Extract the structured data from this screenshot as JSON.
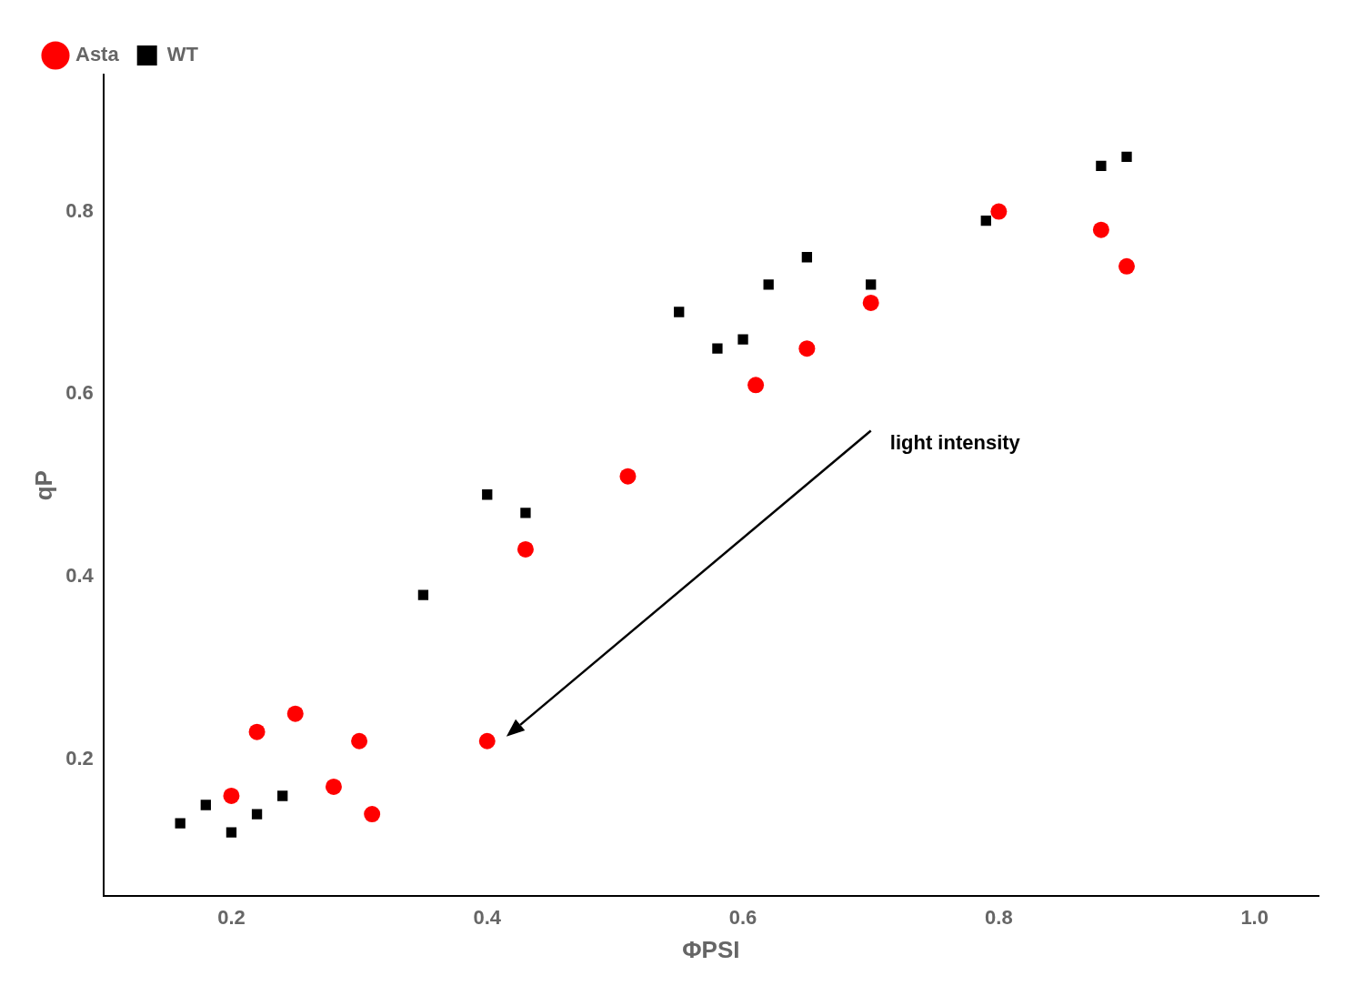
{
  "chart_data": {
    "type": "scatter",
    "xlabel": "ΦPSI",
    "ylabel": "qP",
    "xlim": [
      0.1,
      1.05
    ],
    "ylim": [
      0.05,
      0.95
    ],
    "xticks": [
      0.2,
      0.4,
      0.6,
      0.8,
      {
        "value": 1.0,
        "label": "1.0"
      }
    ],
    "yticks": [
      0.2,
      0.4,
      0.6,
      0.8
    ],
    "grid": false,
    "legend": "upper left",
    "series": [
      {
        "name": "Asta",
        "color": "#FF0000",
        "marker": "circle",
        "x": [
          0.2,
          0.22,
          0.25,
          0.28,
          0.3,
          0.31,
          0.4,
          0.43,
          0.51,
          0.61,
          0.65,
          0.7,
          0.8,
          0.88,
          0.9
        ],
        "values": [
          0.16,
          0.23,
          0.25,
          0.17,
          0.22,
          0.14,
          0.22,
          0.43,
          0.51,
          0.61,
          0.65,
          0.7,
          0.8,
          0.78,
          0.74
        ]
      },
      {
        "name": "WT",
        "color": "#000000",
        "marker": "square",
        "x": [
          0.16,
          0.18,
          0.2,
          0.22,
          0.24,
          0.35,
          0.4,
          0.43,
          0.55,
          0.58,
          0.6,
          0.62,
          0.65,
          0.7,
          0.79,
          0.88,
          0.9
        ],
        "values": [
          0.13,
          0.15,
          0.12,
          0.14,
          0.16,
          0.38,
          0.49,
          0.47,
          0.69,
          0.65,
          0.66,
          0.72,
          0.75,
          0.72,
          0.79,
          0.85,
          0.86
        ]
      }
    ],
    "annotations": [
      {
        "text": "light intensity",
        "x": 0.715,
        "y": 0.535,
        "arrow_from": [
          0.7,
          0.56
        ],
        "arrow_to": [
          0.415,
          0.225
        ]
      }
    ]
  }
}
